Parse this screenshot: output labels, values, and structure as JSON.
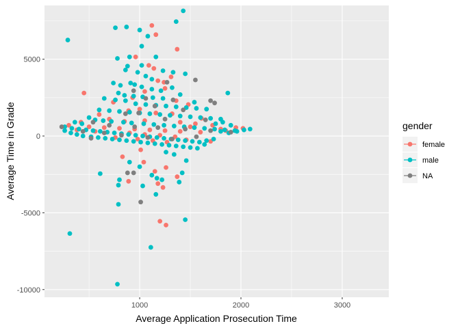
{
  "chart_data": {
    "type": "scatter",
    "title": "",
    "xlabel": "Average Application Prosecution Time",
    "ylabel": "Average Time in Grade",
    "xlim": [
      60,
      3460
    ],
    "ylim": [
      -10500,
      8500
    ],
    "x_ticks": [
      1000,
      2000,
      3000
    ],
    "x_tick_labels": [
      "1000",
      "2000",
      "3000"
    ],
    "y_ticks": [
      -10000,
      -5000,
      0,
      5000
    ],
    "y_tick_labels": [
      "-10000",
      "-5000",
      "0",
      "5000"
    ],
    "grid": true,
    "legend": {
      "title": "gender",
      "position": "right",
      "entries": [
        {
          "label": "female",
          "color": "#F8766D"
        },
        {
          "label": "male",
          "color": "#00BFC4"
        },
        {
          "label": "NA",
          "color": "#7F7F7F"
        }
      ]
    },
    "series": [
      {
        "name": "female",
        "color": "#F8766D",
        "points": [
          [
            1120,
            7200
          ],
          [
            1160,
            6600
          ],
          [
            1370,
            5650
          ],
          [
            960,
            5150
          ],
          [
            1090,
            4600
          ],
          [
            1140,
            4400
          ],
          [
            1310,
            3850
          ],
          [
            1180,
            3600
          ],
          [
            1240,
            3500
          ],
          [
            450,
            2800
          ],
          [
            740,
            2200
          ],
          [
            930,
            2500
          ],
          [
            1050,
            2900
          ],
          [
            1250,
            3100
          ],
          [
            1360,
            2300
          ],
          [
            1480,
            2050
          ],
          [
            890,
            1650
          ],
          [
            1000,
            1750
          ],
          [
            600,
            1400
          ],
          [
            1160,
            1500
          ],
          [
            1320,
            1450
          ],
          [
            1610,
            1150
          ],
          [
            700,
            1100
          ],
          [
            850,
            950
          ],
          [
            1050,
            1000
          ],
          [
            1400,
            900
          ],
          [
            1550,
            800
          ],
          [
            1720,
            700
          ],
          [
            500,
            600
          ],
          [
            650,
            550
          ],
          [
            800,
            500
          ],
          [
            950,
            450
          ],
          [
            1100,
            400
          ],
          [
            1250,
            350
          ],
          [
            1400,
            300
          ],
          [
            1600,
            250
          ],
          [
            1800,
            450
          ],
          [
            900,
            200
          ],
          [
            1050,
            100
          ],
          [
            1200,
            50
          ],
          [
            1350,
            -50
          ],
          [
            560,
            300
          ],
          [
            760,
            -100
          ],
          [
            980,
            -200
          ],
          [
            1130,
            -300
          ],
          [
            1270,
            -400
          ],
          [
            1460,
            -250
          ],
          [
            1700,
            -350
          ],
          [
            1010,
            -900
          ],
          [
            830,
            -1350
          ],
          [
            1040,
            -1700
          ],
          [
            1260,
            -2050
          ],
          [
            1150,
            -2300
          ],
          [
            1370,
            -2650
          ],
          [
            890,
            -2950
          ],
          [
            1180,
            -3100
          ],
          [
            1230,
            -3350
          ],
          [
            1200,
            -5550
          ],
          [
            1260,
            -5800
          ],
          [
            300,
            700
          ],
          [
            380,
            400
          ],
          [
            420,
            900
          ],
          [
            1500,
            600
          ],
          [
            1850,
            350
          ],
          [
            1950,
            550
          ],
          [
            2020,
            500
          ]
        ]
      },
      {
        "name": "male",
        "color": "#00BFC4",
        "points": [
          [
            1430,
            8150
          ],
          [
            760,
            7050
          ],
          [
            870,
            7100
          ],
          [
            1360,
            7450
          ],
          [
            1000,
            6900
          ],
          [
            290,
            6250
          ],
          [
            1080,
            6500
          ],
          [
            1020,
            5850
          ],
          [
            780,
            5050
          ],
          [
            900,
            5150
          ],
          [
            1020,
            4600
          ],
          [
            1160,
            5150
          ],
          [
            1230,
            4250
          ],
          [
            860,
            4300
          ],
          [
            880,
            4550
          ],
          [
            980,
            4150
          ],
          [
            1060,
            3900
          ],
          [
            1120,
            3700
          ],
          [
            1330,
            4150
          ],
          [
            1450,
            4050
          ],
          [
            740,
            3450
          ],
          [
            810,
            3300
          ],
          [
            910,
            3450
          ],
          [
            950,
            3350
          ],
          [
            1020,
            3200
          ],
          [
            1120,
            3050
          ],
          [
            1210,
            2950
          ],
          [
            1320,
            3150
          ],
          [
            1870,
            2800
          ],
          [
            790,
            2800
          ],
          [
            850,
            2650
          ],
          [
            940,
            2600
          ],
          [
            1030,
            2550
          ],
          [
            1130,
            2500
          ],
          [
            1230,
            2450
          ],
          [
            1400,
            2700
          ],
          [
            1540,
            2200
          ],
          [
            650,
            2450
          ],
          [
            760,
            2350
          ],
          [
            860,
            2300
          ],
          [
            960,
            2100
          ],
          [
            1060,
            2050
          ],
          [
            1160,
            2000
          ],
          [
            1260,
            1950
          ],
          [
            1360,
            1900
          ],
          [
            1460,
            1850
          ],
          [
            1560,
            1800
          ],
          [
            1660,
            1750
          ],
          [
            600,
            1700
          ],
          [
            700,
            1650
          ],
          [
            800,
            1600
          ],
          [
            900,
            1550
          ],
          [
            1000,
            1500
          ],
          [
            1100,
            1450
          ],
          [
            1200,
            1400
          ],
          [
            1300,
            1350
          ],
          [
            1400,
            1300
          ],
          [
            1500,
            1250
          ],
          [
            1600,
            1200
          ],
          [
            1700,
            1150
          ],
          [
            1800,
            1100
          ],
          [
            500,
            1200
          ],
          [
            560,
            1050
          ],
          [
            640,
            1000
          ],
          [
            720,
            950
          ],
          [
            840,
            900
          ],
          [
            920,
            850
          ],
          [
            1040,
            800
          ],
          [
            1140,
            750
          ],
          [
            1240,
            700
          ],
          [
            1340,
            650
          ],
          [
            1440,
            600
          ],
          [
            1540,
            550
          ],
          [
            1640,
            500
          ],
          [
            1740,
            450
          ],
          [
            1840,
            400
          ],
          [
            1940,
            350
          ],
          [
            2090,
            450
          ],
          [
            260,
            600
          ],
          [
            330,
            500
          ],
          [
            400,
            450
          ],
          [
            470,
            400
          ],
          [
            540,
            350
          ],
          [
            610,
            300
          ],
          [
            680,
            250
          ],
          [
            750,
            200
          ],
          [
            820,
            150
          ],
          [
            890,
            100
          ],
          [
            960,
            50
          ],
          [
            1030,
            0
          ],
          [
            1100,
            -50
          ],
          [
            1170,
            -100
          ],
          [
            1240,
            -150
          ],
          [
            1310,
            -200
          ],
          [
            1380,
            -250
          ],
          [
            1450,
            -300
          ],
          [
            1520,
            -350
          ],
          [
            1590,
            -400
          ],
          [
            1660,
            -300
          ],
          [
            1730,
            -200
          ],
          [
            1800,
            300
          ],
          [
            1880,
            200
          ],
          [
            1960,
            300
          ],
          [
            2030,
            400
          ],
          [
            260,
            350
          ],
          [
            320,
            200
          ],
          [
            380,
            100
          ],
          [
            440,
            0
          ],
          [
            520,
            -50
          ],
          [
            590,
            -100
          ],
          [
            660,
            -150
          ],
          [
            730,
            -200
          ],
          [
            800,
            -250
          ],
          [
            870,
            -300
          ],
          [
            940,
            -350
          ],
          [
            1010,
            -400
          ],
          [
            1080,
            -450
          ],
          [
            1150,
            -500
          ],
          [
            1220,
            -550
          ],
          [
            1290,
            -600
          ],
          [
            1360,
            -650
          ],
          [
            1430,
            -700
          ],
          [
            1500,
            -750
          ],
          [
            1570,
            -800
          ],
          [
            1640,
            -550
          ],
          [
            360,
            900
          ],
          [
            430,
            800
          ],
          [
            1750,
            800
          ],
          [
            1820,
            900
          ],
          [
            1900,
            700
          ],
          [
            1260,
            -1050
          ],
          [
            1340,
            -1200
          ],
          [
            1460,
            -1600
          ],
          [
            900,
            -1700
          ],
          [
            1000,
            -2000
          ],
          [
            1420,
            -2400
          ],
          [
            610,
            -2450
          ],
          [
            1120,
            -2550
          ],
          [
            800,
            -2850
          ],
          [
            1170,
            -2750
          ],
          [
            1220,
            -2850
          ],
          [
            1390,
            -3000
          ],
          [
            790,
            -3200
          ],
          [
            1030,
            -3250
          ],
          [
            1160,
            -3800
          ],
          [
            790,
            -4450
          ],
          [
            1450,
            -5450
          ],
          [
            1110,
            -7250
          ],
          [
            310,
            -6350
          ],
          [
            780,
            -9650
          ]
        ]
      },
      {
        "name": "NA",
        "color": "#7F7F7F",
        "points": [
          [
            1550,
            3650
          ],
          [
            1270,
            3500
          ],
          [
            940,
            2950
          ],
          [
            1060,
            2450
          ],
          [
            1330,
            2350
          ],
          [
            1700,
            2300
          ],
          [
            1740,
            2150
          ],
          [
            1150,
            1950
          ],
          [
            1430,
            1700
          ],
          [
            860,
            1450
          ],
          [
            1250,
            1100
          ],
          [
            1650,
            1050
          ],
          [
            540,
            900
          ],
          [
            700,
            700
          ],
          [
            950,
            600
          ],
          [
            1180,
            550
          ],
          [
            1450,
            450
          ],
          [
            1700,
            350
          ],
          [
            1900,
            250
          ],
          [
            440,
            300
          ],
          [
            650,
            200
          ],
          [
            820,
            50
          ],
          [
            1080,
            -100
          ],
          [
            1320,
            -200
          ],
          [
            1560,
            -50
          ],
          [
            230,
            600
          ],
          [
            520,
            -150
          ],
          [
            990,
            1500
          ],
          [
            880,
            -2400
          ],
          [
            940,
            -2400
          ],
          [
            1010,
            -4300
          ]
        ]
      }
    ]
  }
}
